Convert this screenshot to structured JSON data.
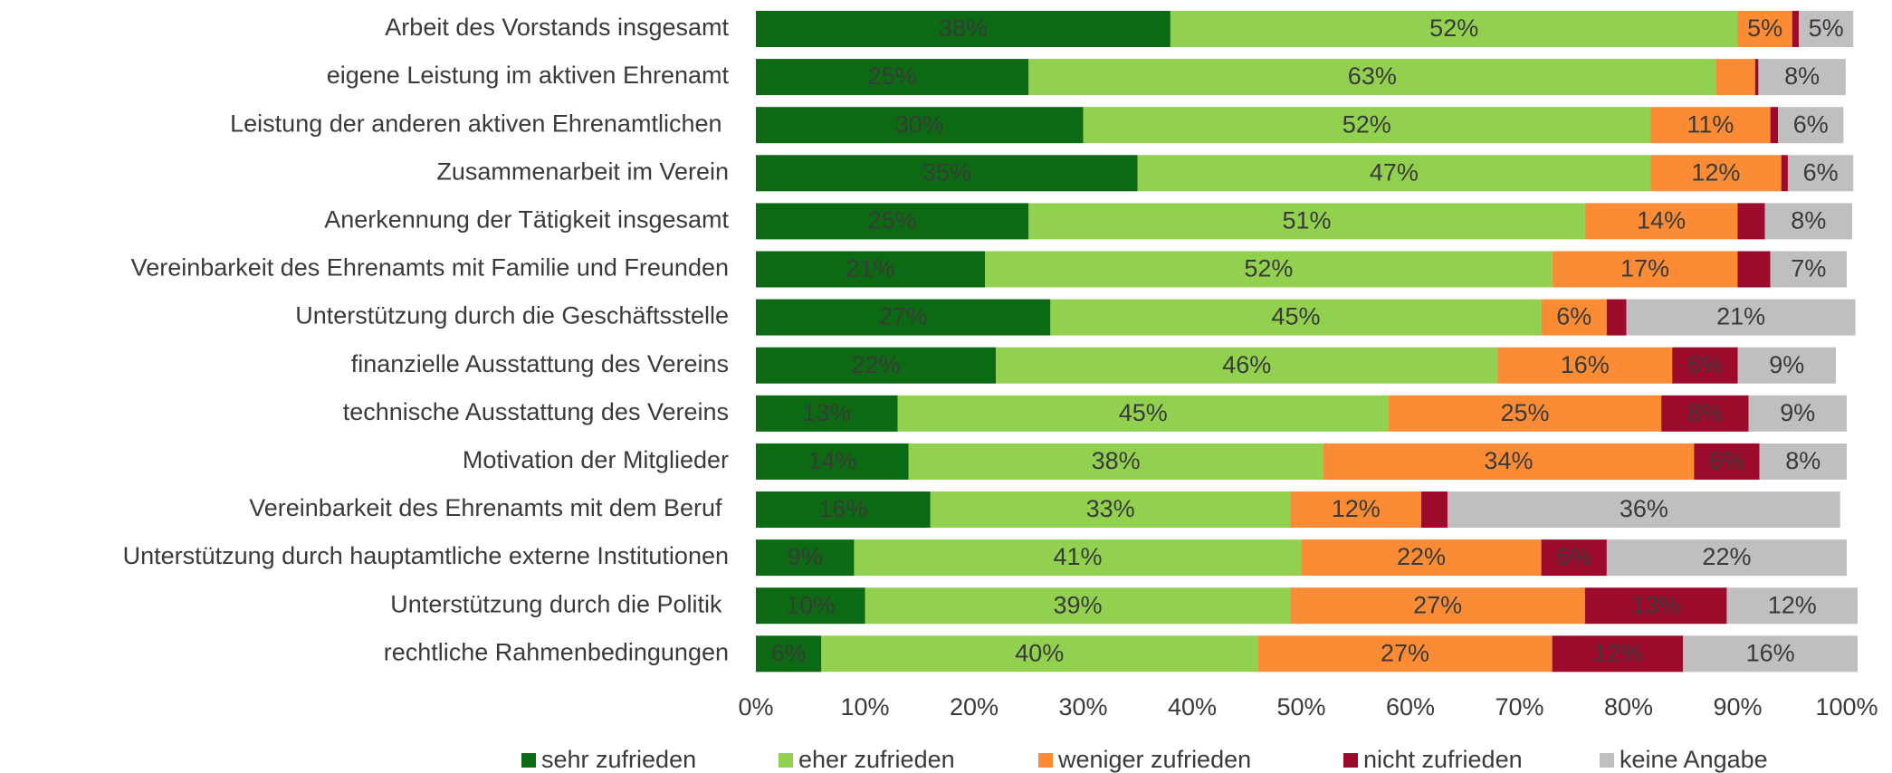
{
  "chart_data": {
    "type": "stacked_barh",
    "categories": [
      "Arbeit des Vorstands insgesamt",
      "eigene Leistung im aktiven Ehrenamt",
      "Leistung der anderen aktiven Ehrenamtlichen ",
      "Zusammenarbeit im Verein",
      "Anerkennung der Tätigkeit insgesamt",
      "Vereinbarkeit des Ehrenamts mit Familie und Freunden",
      "Unterstützung durch die Geschäftsstelle",
      "finanzielle Ausstattung des Vereins",
      "technische Ausstattung des Vereins",
      "Motivation der Mitglieder",
      "Vereinbarkeit des Ehrenamts mit dem Beruf ",
      "Unterstützung durch hauptamtliche externe Institutionen",
      "Unterstützung durch die Politik ",
      "rechtliche Rahmenbedingungen"
    ],
    "series": [
      {
        "name": "sehr zufrieden",
        "color": "#0b6a12",
        "label_color": "#ffffff",
        "values": [
          38,
          25,
          30,
          35,
          25,
          21,
          27,
          22,
          13,
          14,
          16,
          9,
          10,
          6
        ],
        "value_labels": [
          "38%",
          "25%",
          "30%",
          "35%",
          "25%",
          "21%",
          "27%",
          "22%",
          "13%",
          "14%",
          "16%",
          "9%",
          "10%",
          "6%"
        ]
      },
      {
        "name": "eher zufrieden",
        "color": "#92d050",
        "label_color": "#3a3a3a",
        "values": [
          52,
          63,
          52,
          47,
          51,
          52,
          45,
          46,
          45,
          38,
          33,
          41,
          39,
          40
        ],
        "value_labels": [
          "52%",
          "63%",
          "52%",
          "47%",
          "51%",
          "52%",
          "45%",
          "46%",
          "45%",
          "38%",
          "33%",
          "41%",
          "39%",
          "40%"
        ]
      },
      {
        "name": "weniger zufrieden",
        "color": "#fb8c35",
        "label_color": "#3a3a3a",
        "values": [
          5,
          3.6,
          11,
          12,
          14,
          17,
          6,
          16,
          25,
          34,
          12,
          22,
          27,
          27
        ],
        "value_labels": [
          "5%",
          null,
          "11%",
          "12%",
          "14%",
          "17%",
          "6%",
          "16%",
          "25%",
          "34%",
          "12%",
          "22%",
          "27%",
          "27%"
        ]
      },
      {
        "name": "nicht zufrieden",
        "color": "#9c0a2c",
        "label_color": "#ffffff",
        "values": [
          0.6,
          0.3,
          0.7,
          0.6,
          2.5,
          3,
          1.8,
          6,
          8,
          6,
          2.4,
          6,
          13,
          12
        ],
        "value_labels": [
          null,
          null,
          null,
          null,
          null,
          null,
          null,
          "6%",
          "8%",
          "6%",
          null,
          "6%",
          "13%",
          "12%"
        ]
      },
      {
        "name": "keine Angabe",
        "color": "#bfbfbf",
        "label_color": "#3a3a3a",
        "values": [
          5,
          8,
          6,
          6,
          8,
          7,
          21,
          9,
          9,
          8,
          36,
          22,
          12,
          16
        ],
        "value_labels": [
          "5%",
          "8%",
          "6%",
          "6%",
          "8%",
          "7%",
          "21%",
          "9%",
          "9%",
          "8%",
          "36%",
          "22%",
          "12%",
          "16%"
        ]
      }
    ],
    "xlim": [
      0,
      100
    ],
    "xticks": [
      {
        "value": 0,
        "label": "0%"
      },
      {
        "value": 10,
        "label": "10%"
      },
      {
        "value": 20,
        "label": "20%"
      },
      {
        "value": 30,
        "label": "30%"
      },
      {
        "value": 40,
        "label": "40%"
      },
      {
        "value": 50,
        "label": "50%"
      },
      {
        "value": 60,
        "label": "60%"
      },
      {
        "value": 70,
        "label": "70%"
      },
      {
        "value": 80,
        "label": "80%"
      },
      {
        "value": 90,
        "label": "90%"
      },
      {
        "value": 100,
        "label": "100%"
      }
    ],
    "legend": "bottom"
  }
}
